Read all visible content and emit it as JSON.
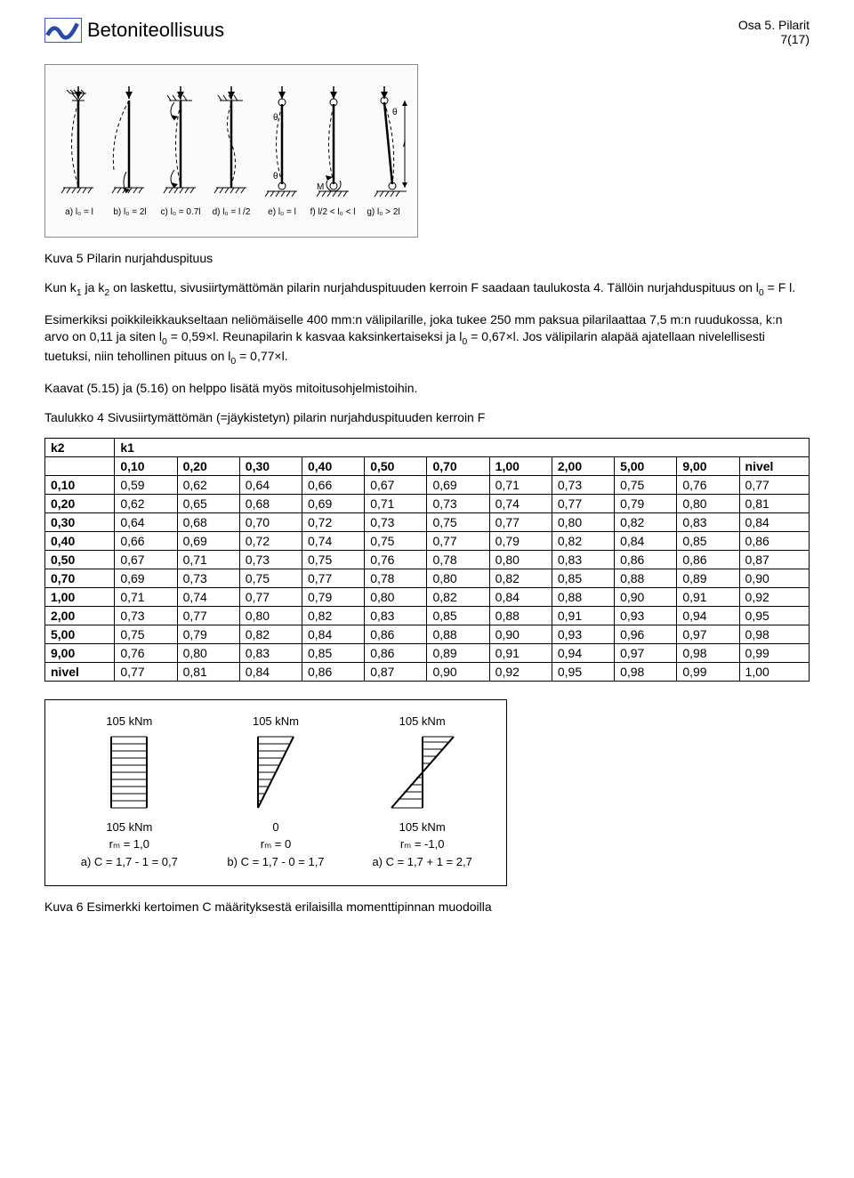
{
  "header": {
    "brand": "Betoniteollisuus",
    "section": "Osa 5. Pilarit",
    "page": "7(17)"
  },
  "figure1": {
    "captions": [
      "a)  l₀ = l",
      "b)  l₀ = 2l",
      "c)  l₀ = 0.7l",
      "d)  l₀ = l /2",
      "e)  l₀ = l",
      "f)  l/2 < l₀ < l",
      "g)  l₀ > 2l"
    ],
    "theta": "θ",
    "M": "M",
    "l": "l"
  },
  "text": {
    "p1a": "Kuva 5 Pilarin nurjahduspituus",
    "p2a": "Kun k",
    "p2b": " ja k",
    "p2c": " on laskettu, sivusiirtymättömän pilarin nurjahduspituuden kerroin F saadaan taulukosta 4. Tällöin nurjahduspituus on l",
    "p2d": " = F l.",
    "p3a": "Esimerkiksi poikkileikkaukseltaan neliömäiselle 400 mm:n välipilarille, joka tukee 250 mm paksua pilari­laattaa 7,5 m:n ruudukossa, k:n arvo on 0,11 ja siten l",
    "p3b": " = 0,59×l. Reunapilarin k kasvaa kaksinkertaiseksi ja l",
    "p3c": " = 0,67×l. Jos välipilarin alapää ajatellaan nivelellisesti tuetuksi, niin tehollinen pituus on l",
    "p3d": " = 0,77×l.",
    "p4": "Kaavat (5.15) ja (5.16) on helppo lisätä myös mitoitusohjelmistoihin.",
    "p5": "Taulukko 4 Sivusiirtymättömän (=jäykistetyn) pilarin nurjahduspituuden kerroin F",
    "fig6": "Kuva 6 Esimerkki kertoimen C määrityksestä erilaisilla momenttipinnan muodoilla"
  },
  "table": {
    "corner_k2": "k2",
    "corner_k1": "k1",
    "col_headers": [
      "0,10",
      "0,20",
      "0,30",
      "0,40",
      "0,50",
      "0,70",
      "1,00",
      "2,00",
      "5,00",
      "9,00",
      "nivel"
    ],
    "rows": [
      {
        "h": "0,10",
        "v": [
          "0,59",
          "0,62",
          "0,64",
          "0,66",
          "0,67",
          "0,69",
          "0,71",
          "0,73",
          "0,75",
          "0,76",
          "0,77"
        ]
      },
      {
        "h": "0,20",
        "v": [
          "0,62",
          "0,65",
          "0,68",
          "0,69",
          "0,71",
          "0,73",
          "0,74",
          "0,77",
          "0,79",
          "0,80",
          "0,81"
        ]
      },
      {
        "h": "0,30",
        "v": [
          "0,64",
          "0,68",
          "0,70",
          "0,72",
          "0,73",
          "0,75",
          "0,77",
          "0,80",
          "0,82",
          "0,83",
          "0,84"
        ]
      },
      {
        "h": "0,40",
        "v": [
          "0,66",
          "0,69",
          "0,72",
          "0,74",
          "0,75",
          "0,77",
          "0,79",
          "0,82",
          "0,84",
          "0,85",
          "0,86"
        ]
      },
      {
        "h": "0,50",
        "v": [
          "0,67",
          "0,71",
          "0,73",
          "0,75",
          "0,76",
          "0,78",
          "0,80",
          "0,83",
          "0,86",
          "0,86",
          "0,87"
        ]
      },
      {
        "h": "0,70",
        "v": [
          "0,69",
          "0,73",
          "0,75",
          "0,77",
          "0,78",
          "0,80",
          "0,82",
          "0,85",
          "0,88",
          "0,89",
          "0,90"
        ]
      },
      {
        "h": "1,00",
        "v": [
          "0,71",
          "0,74",
          "0,77",
          "0,79",
          "0,80",
          "0,82",
          "0,84",
          "0,88",
          "0,90",
          "0,91",
          "0,92"
        ]
      },
      {
        "h": "2,00",
        "v": [
          "0,73",
          "0,77",
          "0,80",
          "0,82",
          "0,83",
          "0,85",
          "0,88",
          "0,91",
          "0,93",
          "0,94",
          "0,95"
        ]
      },
      {
        "h": "5,00",
        "v": [
          "0,75",
          "0,79",
          "0,82",
          "0,84",
          "0,86",
          "0,88",
          "0,90",
          "0,93",
          "0,96",
          "0,97",
          "0,98"
        ]
      },
      {
        "h": "9,00",
        "v": [
          "0,76",
          "0,80",
          "0,83",
          "0,85",
          "0,86",
          "0,89",
          "0,91",
          "0,94",
          "0,97",
          "0,98",
          "0,99"
        ]
      },
      {
        "h": "nivel",
        "v": [
          "0,77",
          "0,81",
          "0,84",
          "0,86",
          "0,87",
          "0,90",
          "0,92",
          "0,95",
          "0,98",
          "0,99",
          "1,00"
        ]
      }
    ]
  },
  "figure2": {
    "top_labels": [
      "105 kNm",
      "105 kNm",
      "105 kNm"
    ],
    "bottom_labels": [
      "105 kNm",
      "0",
      "105 kNm"
    ],
    "rm_labels": [
      "rₘ = 1,0",
      "rₘ = 0",
      "rₘ = -1,0"
    ],
    "c_labels": [
      "a) C = 1,7 - 1 = 0,7",
      "b) C = 1,7 - 0 = 1,7",
      "a) C = 1,7 + 1 = 2,7"
    ]
  }
}
